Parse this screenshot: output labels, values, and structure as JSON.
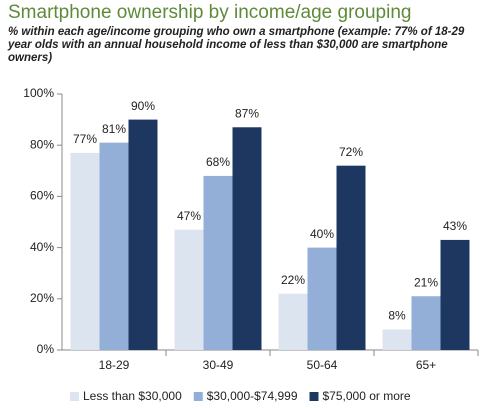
{
  "chart_data": {
    "type": "bar",
    "title": "Smartphone ownership by income/age grouping",
    "subtitle": "% within each age/income grouping who own a smartphone (example: 77% of 18-29 year olds with an annual household income of less than $30,000 are smartphone owners)",
    "categories": [
      "18-29",
      "30-49",
      "50-64",
      "65+"
    ],
    "series": [
      {
        "name": "Less than $30,000",
        "color": "#dce4ef",
        "values": [
          77,
          47,
          22,
          8
        ],
        "value_labels": [
          "77%",
          "47%",
          "22%",
          "8%"
        ]
      },
      {
        "name": "$30,000-$74,999",
        "color": "#93afd7",
        "values": [
          81,
          68,
          40,
          21
        ],
        "value_labels": [
          "81%",
          "68%",
          "40%",
          "21%"
        ]
      },
      {
        "name": "$75,000 or more",
        "color": "#1d3761",
        "values": [
          90,
          87,
          72,
          43
        ],
        "value_labels": [
          "90%",
          "87%",
          "72%",
          "43%"
        ]
      }
    ],
    "ylim": [
      0,
      100
    ],
    "yticks": [
      {
        "value": 0,
        "label": "0%"
      },
      {
        "value": 20,
        "label": "20%"
      },
      {
        "value": 40,
        "label": "40%"
      },
      {
        "value": 60,
        "label": "60%"
      },
      {
        "value": 80,
        "label": "80%"
      },
      {
        "value": 100,
        "label": "100%"
      }
    ]
  }
}
